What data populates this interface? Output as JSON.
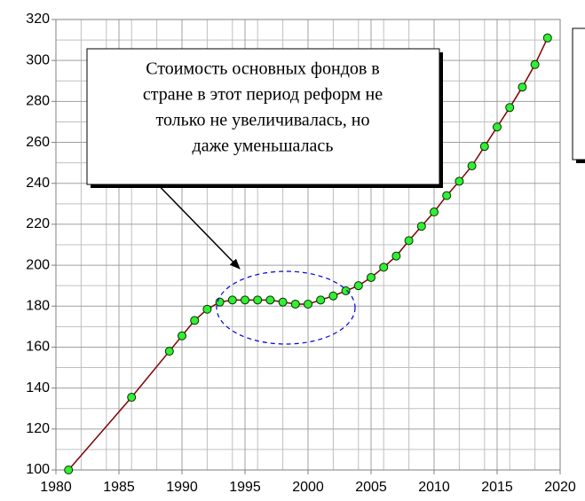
{
  "chart_data": {
    "type": "line",
    "x": [
      1981,
      1986,
      1989,
      1990,
      1991,
      1992,
      1993,
      1994,
      1995,
      1996,
      1997,
      1998,
      1999,
      2000,
      2001,
      2002,
      2003,
      2004,
      2005,
      2006,
      2007,
      2008,
      2009,
      2010,
      2011,
      2012,
      2013,
      2014,
      2015,
      2016,
      2017,
      2018,
      2019
    ],
    "values": [
      100,
      135.5,
      158,
      165.5,
      173,
      178.5,
      182,
      183,
      183,
      183,
      183,
      182,
      181,
      181,
      183,
      185,
      187.5,
      190,
      194,
      199,
      204.5,
      212,
      219,
      226,
      234,
      241,
      248.5,
      258,
      267.5,
      277,
      287,
      298,
      311
    ],
    "color": "#800000",
    "marker_color": "#33ee33",
    "xlim": [
      1980,
      2020
    ],
    "xticks": [
      1980,
      1985,
      1990,
      1995,
      2000,
      2005,
      2010,
      2015,
      2020
    ],
    "xminorticks": [
      1982,
      1984,
      1986,
      1988,
      1992,
      1994,
      1996,
      1998,
      2002,
      2004,
      2006,
      2008,
      2012,
      2014,
      2016,
      2018
    ],
    "ylim": [
      100,
      320
    ],
    "yticks": [
      100,
      120,
      140,
      160,
      180,
      200,
      220,
      240,
      260,
      280,
      300,
      320
    ],
    "yminorticks": [
      110,
      130,
      150,
      170,
      190,
      210,
      230,
      250,
      270,
      290,
      310
    ],
    "grid": true,
    "annotation": [
      "Стоимость основных фондов в",
      "стране в этот период реформ не",
      "только не увеличивалась, но",
      "даже уменьшалась"
    ]
  }
}
